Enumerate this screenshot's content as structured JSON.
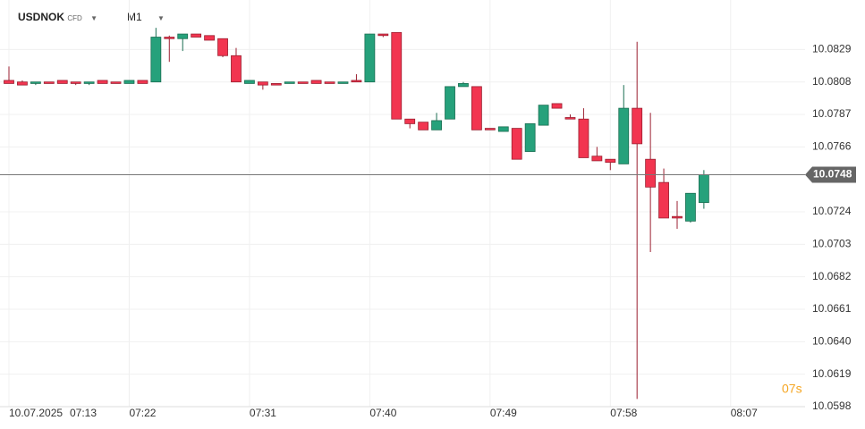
{
  "header": {
    "symbol": "USDNOK",
    "kind": "CFD",
    "timeframe": "M1"
  },
  "countdown": "07s",
  "chart_data": {
    "type": "candlestick",
    "date": "10.07.2025",
    "x": [
      "07:13",
      "07:14",
      "07:15",
      "07:16",
      "07:17",
      "07:18",
      "07:19",
      "07:20",
      "07:21",
      "07:22",
      "07:23",
      "07:24",
      "07:25",
      "07:26",
      "07:27",
      "07:28",
      "07:29",
      "07:30",
      "07:31",
      "07:32",
      "07:33",
      "07:34",
      "07:35",
      "07:36",
      "07:37",
      "07:38",
      "07:39",
      "07:40",
      "07:41",
      "07:42",
      "07:43",
      "07:44",
      "07:45",
      "07:46",
      "07:47",
      "07:48",
      "07:49",
      "07:50",
      "07:51",
      "07:52",
      "07:53",
      "07:54",
      "07:55",
      "07:56",
      "07:57",
      "07:58",
      "07:59",
      "08:00",
      "08:01",
      "08:02",
      "08:03",
      "08:04",
      "08:05"
    ],
    "open": [
      10.0809,
      10.0808,
      10.0807,
      10.0808,
      10.0809,
      10.0808,
      10.0807,
      10.0809,
      10.0808,
      10.0807,
      10.0809,
      10.0808,
      10.0837,
      10.0836,
      10.0839,
      10.0838,
      10.0836,
      10.0825,
      10.0807,
      10.0808,
      10.0807,
      10.0807,
      10.0808,
      10.0809,
      10.0808,
      10.0807,
      10.0809,
      10.0808,
      10.0839,
      10.084,
      10.0784,
      10.0782,
      10.0777,
      10.0784,
      10.0805,
      10.0805,
      10.0778,
      10.0776,
      10.0778,
      10.0763,
      10.078,
      10.0794,
      10.0785,
      10.0784,
      10.076,
      10.0758,
      10.0755,
      10.0791,
      10.0758,
      10.0743,
      10.0721,
      10.0718,
      10.073
    ],
    "high": [
      10.0818,
      10.0809,
      10.0808,
      10.0808,
      10.0809,
      10.0808,
      10.0808,
      10.0809,
      10.0808,
      10.0809,
      10.0809,
      10.0843,
      10.0838,
      10.0839,
      10.0839,
      10.0838,
      10.0836,
      10.083,
      10.0809,
      10.0808,
      10.0807,
      10.0808,
      10.0808,
      10.0809,
      10.0808,
      10.0808,
      10.0813,
      10.0839,
      10.0839,
      10.084,
      10.0784,
      10.0782,
      10.0788,
      10.0805,
      10.0808,
      10.0805,
      10.0778,
      10.0779,
      10.0778,
      10.0781,
      10.0793,
      10.0794,
      10.0787,
      10.0791,
      10.0766,
      10.0758,
      10.0806,
      10.0834,
      10.0788,
      10.0752,
      10.0731,
      10.0736,
      10.0751
    ],
    "low": [
      10.0807,
      10.0806,
      10.0806,
      10.0807,
      10.0807,
      10.0806,
      10.0806,
      10.0807,
      10.0807,
      10.0807,
      10.0807,
      10.0808,
      10.0821,
      10.0828,
      10.0837,
      10.0835,
      10.0824,
      10.0808,
      10.0807,
      10.0803,
      10.0806,
      10.0807,
      10.0807,
      10.0807,
      10.0807,
      10.0807,
      10.0808,
      10.0808,
      10.0837,
      10.0784,
      10.0778,
      10.0777,
      10.0777,
      10.0784,
      10.0805,
      10.0777,
      10.0777,
      10.0776,
      10.0758,
      10.0763,
      10.078,
      10.0791,
      10.0784,
      10.0759,
      10.0757,
      10.0751,
      10.0755,
      10.0603,
      10.0698,
      10.072,
      10.0713,
      10.0717,
      10.0726
    ],
    "close": [
      10.0807,
      10.0806,
      10.0808,
      10.0807,
      10.0807,
      10.0807,
      10.0808,
      10.0807,
      10.0807,
      10.0809,
      10.0807,
      10.0837,
      10.0836,
      10.0839,
      10.0837,
      10.0835,
      10.0825,
      10.0808,
      10.0809,
      10.0806,
      10.0806,
      10.0808,
      10.0807,
      10.0807,
      10.0807,
      10.0808,
      10.0808,
      10.0839,
      10.0838,
      10.0784,
      10.0781,
      10.0777,
      10.0783,
      10.0805,
      10.0807,
      10.0777,
      10.0777,
      10.0779,
      10.0758,
      10.0781,
      10.0793,
      10.0791,
      10.0784,
      10.0759,
      10.0757,
      10.0756,
      10.0791,
      10.0768,
      10.074,
      10.072,
      10.072,
      10.0736,
      10.0748
    ],
    "up_color": "#26a17b",
    "down_color": "#f23550",
    "last_price": 10.0748,
    "ylim": [
      10.0598,
      10.0861
    ],
    "yticks": [
      10.0598,
      10.0619,
      {
        "value": 10.064,
        "label": "10.0640"
      },
      10.0661,
      10.0682,
      10.0703,
      10.0724,
      10.0766,
      10.0787,
      10.0808,
      10.0829
    ],
    "xlim": [
      "07:13",
      "08:12"
    ],
    "xticks": [
      "07:13",
      "07:22",
      "07:31",
      "07:40",
      "07:49",
      "07:58",
      "08:07"
    ],
    "grid": true
  }
}
